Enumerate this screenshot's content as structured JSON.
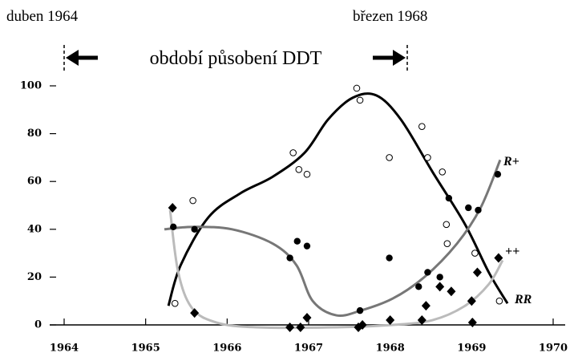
{
  "chart_data": {
    "type": "scatter",
    "annotations": [
      "duben 1964",
      "březen 1968",
      "období působení DDT"
    ],
    "xlim": [
      1964,
      1970
    ],
    "xticks": [
      1964,
      1965,
      1966,
      1967,
      1968,
      1969,
      1970
    ],
    "ylim": [
      0,
      100
    ],
    "yticks": [
      0,
      20,
      40,
      60,
      80,
      100
    ],
    "series": [
      {
        "name": "RR",
        "marker": "open-circle",
        "color": "#000000",
        "x": [
          1965.36,
          1965.58,
          1966.81,
          1966.88,
          1966.98,
          1967.59,
          1967.63,
          1967.99,
          1968.39,
          1968.46,
          1968.64,
          1968.7,
          1968.69,
          1969.04,
          1969.34
        ],
        "y": [
          9,
          52,
          72,
          65,
          63,
          99,
          94,
          70,
          83,
          70,
          64,
          34,
          42,
          30,
          10
        ],
        "curve_x": [
          1965.28,
          1965.43,
          1965.77,
          1966.16,
          1966.56,
          1966.95,
          1967.24,
          1967.54,
          1967.83,
          1968.13,
          1968.52,
          1968.92,
          1969.21,
          1969.44
        ],
        "curve_y": [
          8,
          25,
          45,
          55,
          62,
          72,
          86,
          95,
          96,
          86,
          64,
          42,
          22,
          9
        ]
      },
      {
        "name": "R+",
        "marker": "filled-circle",
        "color": "#777777",
        "x": [
          1965.34,
          1965.6,
          1966.77,
          1966.86,
          1966.98,
          1967.63,
          1967.99,
          1968.35,
          1968.46,
          1968.61,
          1968.72,
          1968.96,
          1969.08,
          1969.32
        ],
        "y": [
          41,
          40,
          28,
          35,
          33,
          6,
          28,
          16,
          22,
          20,
          53,
          49,
          48,
          63
        ],
        "curve_x": [
          1965.23,
          1965.57,
          1966.06,
          1966.56,
          1966.85,
          1967.05,
          1967.34,
          1967.64,
          1968.03,
          1968.42,
          1968.82,
          1969.11,
          1969.35
        ],
        "curve_y": [
          40,
          41,
          40,
          34,
          25,
          10,
          4,
          6,
          11,
          20,
          34,
          49,
          69
        ]
      },
      {
        "name": "++",
        "marker": "diamond",
        "color": "#bbbbbb",
        "x": [
          1965.33,
          1965.6,
          1966.77,
          1966.9,
          1966.98,
          1967.61,
          1967.66,
          1968.0,
          1968.39,
          1968.44,
          1968.61,
          1968.75,
          1969.0,
          1969.01,
          1969.07,
          1969.33
        ],
        "y": [
          49,
          5,
          -1,
          -1,
          3,
          -1,
          0,
          2,
          2,
          8,
          16,
          14,
          10,
          1,
          22,
          28
        ],
        "curve_x": [
          1965.3,
          1965.4,
          1965.57,
          1965.87,
          1966.36,
          1967.34,
          1968.03,
          1968.52,
          1968.92,
          1969.21,
          1969.38
        ],
        "curve_y": [
          48,
          22,
          7,
          1,
          -1,
          -1,
          0,
          2,
          8,
          17,
          27
        ]
      }
    ]
  }
}
